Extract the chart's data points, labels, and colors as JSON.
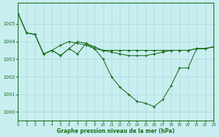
{
  "title": "Graphe pression niveau de la mer (hPa)",
  "bg_color": "#c8eef0",
  "grid_color": "#b0dce0",
  "line_color": "#1a6e1a",
  "marker_color": "#1a6e1a",
  "xlim": [
    0,
    23
  ],
  "ylim": [
    999.5,
    1006.2
  ],
  "yticks": [
    1000,
    1001,
    1002,
    1003,
    1004,
    1005
  ],
  "xticks": [
    0,
    1,
    2,
    3,
    4,
    5,
    6,
    7,
    8,
    9,
    10,
    11,
    12,
    13,
    14,
    15,
    16,
    17,
    18,
    19,
    20,
    21,
    22,
    23
  ],
  "series": [
    {
      "x": [
        0,
        1,
        2,
        3,
        4,
        5,
        6,
        7,
        8,
        9,
        10,
        11,
        12,
        13,
        14,
        15,
        16,
        17,
        18,
        19,
        20,
        21,
        22,
        23
      ],
      "y": [
        1005.6,
        1004.5,
        1004.4,
        1003.3,
        1003.5,
        1003.8,
        1004.0,
        1003.9,
        1003.8,
        1003.6,
        1003.5,
        1003.5,
        1003.5,
        1003.5,
        1003.5,
        1003.5,
        1003.5,
        1003.5,
        1003.5,
        1003.5,
        1003.5,
        1003.6,
        1003.6,
        1003.7
      ]
    },
    {
      "x": [
        0,
        1,
        2,
        3,
        4,
        5,
        6,
        7,
        8,
        9,
        10,
        11,
        12,
        13,
        14,
        15,
        16,
        17,
        18,
        19,
        20,
        21,
        22,
        23
      ],
      "y": [
        1005.6,
        1004.5,
        1004.4,
        1003.3,
        1003.5,
        1003.2,
        1003.6,
        1004.0,
        1003.9,
        1003.7,
        1003.5,
        1003.4,
        1003.3,
        1003.2,
        1003.2,
        1003.2,
        1003.3,
        1003.4,
        1003.5,
        1003.5,
        1003.5,
        1003.6,
        1003.6,
        1003.7
      ]
    },
    {
      "x": [
        0,
        1,
        2,
        3,
        4,
        5,
        6,
        7,
        8,
        9,
        10,
        11,
        12,
        13,
        14,
        15,
        16,
        17,
        18,
        19,
        20,
        21,
        22,
        23
      ],
      "y": [
        1005.6,
        1004.5,
        1004.4,
        1003.3,
        1003.5,
        1003.2,
        1003.6,
        1003.3,
        1003.9,
        1003.6,
        1003.0,
        1002.0,
        1001.4,
        1001.0,
        1000.6,
        1000.5,
        1000.3,
        1000.7,
        1001.5,
        1002.5,
        1002.5,
        1003.6,
        1003.6,
        1003.7
      ]
    }
  ]
}
